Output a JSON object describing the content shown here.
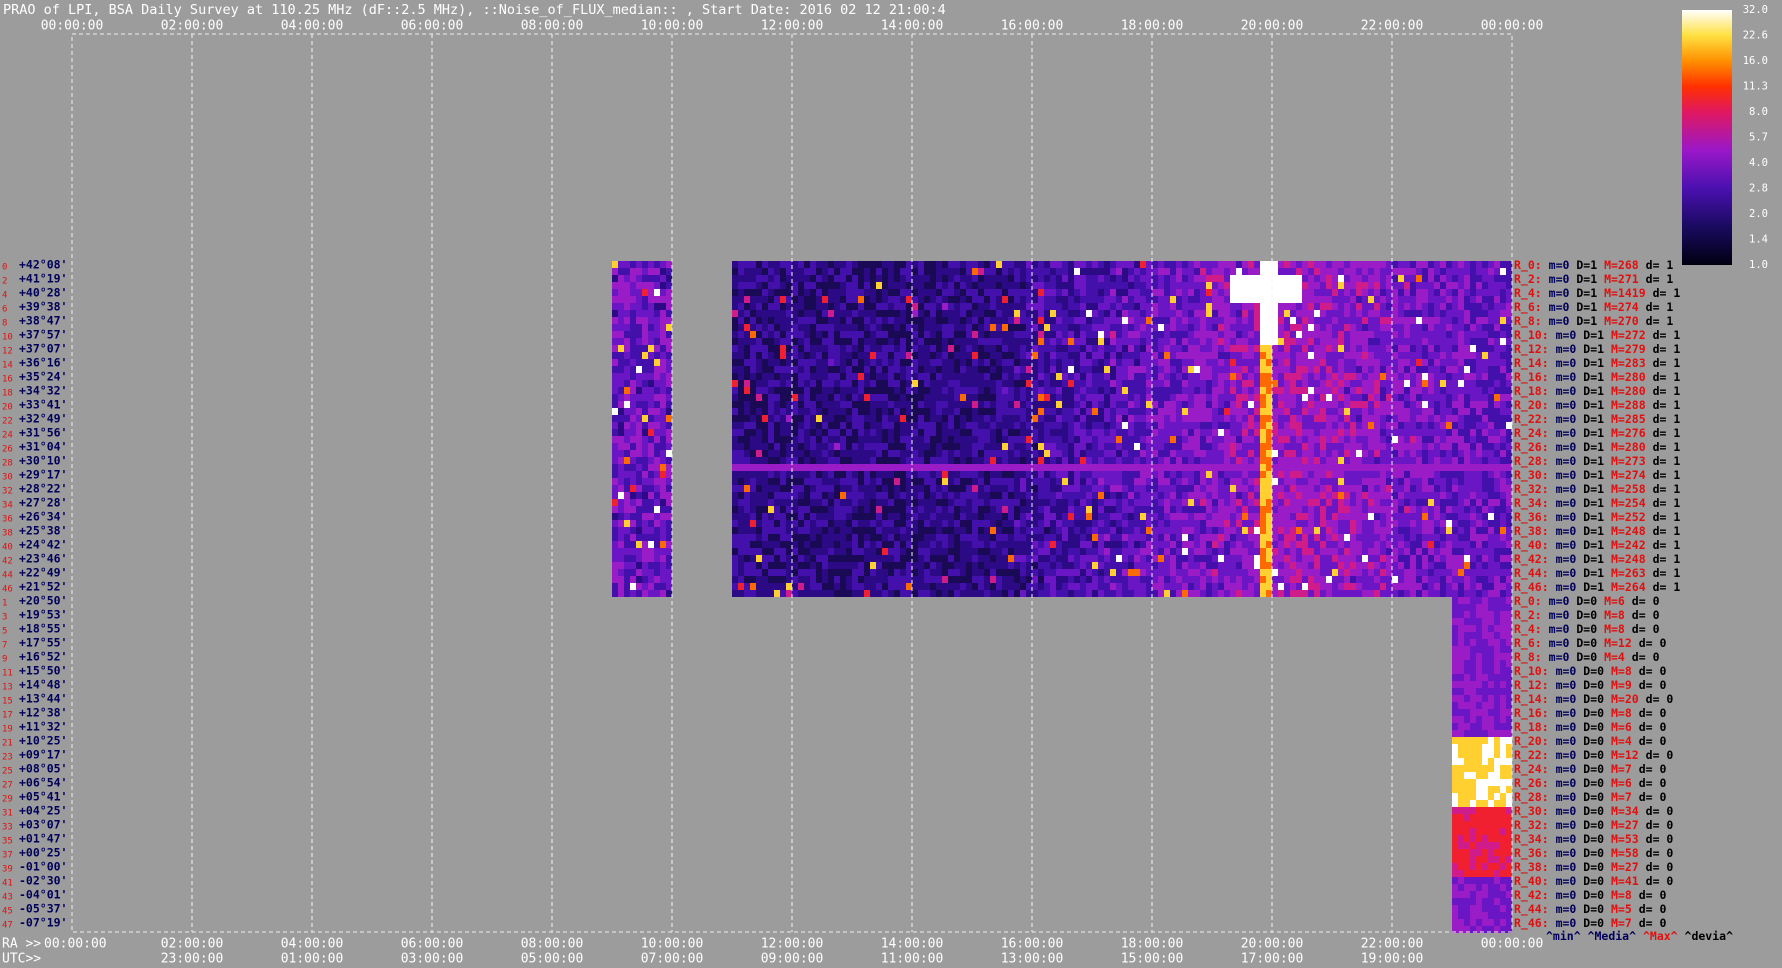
{
  "title": "PRAO of LPI, BSA Daily Survey at 110.25 MHz (dF::2.5 MHz), ::Noise_of_FLUX_median:: , Start Date: 2016 02 12 21:00:4",
  "top_axis": [
    "00:00:00",
    "02:00:00",
    "04:00:00",
    "06:00:00",
    "08:00:00",
    "10:00:00",
    "12:00:00",
    "14:00:00",
    "16:00:00",
    "18:00:00",
    "20:00:00",
    "22:00:00",
    "00:00:00"
  ],
  "bottom_axis": {
    "prefix": "RA >>",
    "labels": [
      "00:00:00",
      "02:00:00",
      "04:00:00",
      "06:00:00",
      "08:00:00",
      "10:00:00",
      "12:00:00",
      "14:00:00",
      "16:00:00",
      "18:00:00",
      "20:00:00",
      "22:00:00",
      "00:00:00"
    ]
  },
  "utc_axis": {
    "prefix": "UTC>>",
    "labels": [
      "23:00:00",
      "01:00:00",
      "03:00:00",
      "05:00:00",
      "07:00:00",
      "09:00:00",
      "11:00:00",
      "13:00:00",
      "15:00:00",
      "17:00:00",
      "19:00:00"
    ]
  },
  "colorbar": [
    "32.0",
    "22.6",
    "16.0",
    "11.3",
    "8.0",
    "5.7",
    "4.0",
    "2.8",
    "2.0",
    "1.4",
    "1.0"
  ],
  "rows": [
    {
      "index": "0",
      "dec": "+42°08'"
    },
    {
      "index": "2",
      "dec": "+41°19'"
    },
    {
      "index": "4",
      "dec": "+40°28'"
    },
    {
      "index": "6",
      "dec": "+39°38'"
    },
    {
      "index": "8",
      "dec": "+38°47'"
    },
    {
      "index": "10",
      "dec": "+37°57'"
    },
    {
      "index": "12",
      "dec": "+37°07'"
    },
    {
      "index": "14",
      "dec": "+36°16'"
    },
    {
      "index": "16",
      "dec": "+35°24'"
    },
    {
      "index": "18",
      "dec": "+34°32'"
    },
    {
      "index": "20",
      "dec": "+33°41'"
    },
    {
      "index": "22",
      "dec": "+32°49'"
    },
    {
      "index": "24",
      "dec": "+31°56'"
    },
    {
      "index": "26",
      "dec": "+31°04'"
    },
    {
      "index": "28",
      "dec": "+30°10'"
    },
    {
      "index": "30",
      "dec": "+29°17'"
    },
    {
      "index": "32",
      "dec": "+28°22'"
    },
    {
      "index": "34",
      "dec": "+27°28'"
    },
    {
      "index": "36",
      "dec": "+26°34'"
    },
    {
      "index": "38",
      "dec": "+25°38'"
    },
    {
      "index": "40",
      "dec": "+24°42'"
    },
    {
      "index": "42",
      "dec": "+23°46'"
    },
    {
      "index": "44",
      "dec": "+22°49'"
    },
    {
      "index": "46",
      "dec": "+21°52'"
    },
    {
      "index": "1",
      "dec": "+20°50'"
    },
    {
      "index": "3",
      "dec": "+19°53'"
    },
    {
      "index": "5",
      "dec": "+18°55'"
    },
    {
      "index": "7",
      "dec": "+17°55'"
    },
    {
      "index": "9",
      "dec": "+16°52'"
    },
    {
      "index": "11",
      "dec": "+15°50'"
    },
    {
      "index": "13",
      "dec": "+14°48'"
    },
    {
      "index": "15",
      "dec": "+13°44'"
    },
    {
      "index": "17",
      "dec": "+12°38'"
    },
    {
      "index": "19",
      "dec": "+11°32'"
    },
    {
      "index": "21",
      "dec": "+10°25'"
    },
    {
      "index": "23",
      "dec": "+09°17'"
    },
    {
      "index": "25",
      "dec": "+08°05'"
    },
    {
      "index": "27",
      "dec": "+06°54'"
    },
    {
      "index": "29",
      "dec": "+05°41'"
    },
    {
      "index": "31",
      "dec": "+04°25'"
    },
    {
      "index": "33",
      "dec": "+03°07'"
    },
    {
      "index": "35",
      "dec": "+01°47'"
    },
    {
      "index": "37",
      "dec": "+00°25'"
    },
    {
      "index": "39",
      "dec": "-01°00'"
    },
    {
      "index": "41",
      "dec": "-02°30'"
    },
    {
      "index": "43",
      "dec": "-04°01'"
    },
    {
      "index": "45",
      "dec": "-05°37'"
    },
    {
      "index": "47",
      "dec": "-07°19'"
    }
  ],
  "stats": [
    {
      "label": "R_0:",
      "m": "m=0",
      "D": "D=1",
      "M": "M=268",
      "d": "d= 1"
    },
    {
      "label": "R_2:",
      "m": "m=0",
      "D": "D=1",
      "M": "M=271",
      "d": "d= 1"
    },
    {
      "label": "R_4:",
      "m": "m=0",
      "D": "D=1",
      "M": "M=1419",
      "d": "d= 1"
    },
    {
      "label": "R_6:",
      "m": "m=0",
      "D": "D=1",
      "M": "M=274",
      "d": "d= 1"
    },
    {
      "label": "R_8:",
      "m": "m=0",
      "D": "D=1",
      "M": "M=270",
      "d": "d= 1"
    },
    {
      "label": "R_10:",
      "m": "m=0",
      "D": "D=1",
      "M": "M=272",
      "d": "d= 1"
    },
    {
      "label": "R_12:",
      "m": "m=0",
      "D": "D=1",
      "M": "M=279",
      "d": "d= 1"
    },
    {
      "label": "R_14:",
      "m": "m=0",
      "D": "D=1",
      "M": "M=283",
      "d": "d= 1"
    },
    {
      "label": "R_16:",
      "m": "m=0",
      "D": "D=1",
      "M": "M=280",
      "d": "d= 1"
    },
    {
      "label": "R_18:",
      "m": "m=0",
      "D": "D=1",
      "M": "M=280",
      "d": "d= 1"
    },
    {
      "label": "R_20:",
      "m": "m=0",
      "D": "D=1",
      "M": "M=288",
      "d": "d= 1"
    },
    {
      "label": "R_22:",
      "m": "m=0",
      "D": "D=1",
      "M": "M=285",
      "d": "d= 1"
    },
    {
      "label": "R_24:",
      "m": "m=0",
      "D": "D=1",
      "M": "M=276",
      "d": "d= 1"
    },
    {
      "label": "R_26:",
      "m": "m=0",
      "D": "D=1",
      "M": "M=280",
      "d": "d= 1"
    },
    {
      "label": "R_28:",
      "m": "m=0",
      "D": "D=1",
      "M": "M=273",
      "d": "d= 1"
    },
    {
      "label": "R_30:",
      "m": "m=0",
      "D": "D=1",
      "M": "M=274",
      "d": "d= 1"
    },
    {
      "label": "R_32:",
      "m": "m=0",
      "D": "D=1",
      "M": "M=258",
      "d": "d= 1"
    },
    {
      "label": "R_34:",
      "m": "m=0",
      "D": "D=1",
      "M": "M=254",
      "d": "d= 1"
    },
    {
      "label": "R_36:",
      "m": "m=0",
      "D": "D=1",
      "M": "M=252",
      "d": "d= 1"
    },
    {
      "label": "R_38:",
      "m": "m=0",
      "D": "D=1",
      "M": "M=248",
      "d": "d= 1"
    },
    {
      "label": "R_40:",
      "m": "m=0",
      "D": "D=1",
      "M": "M=242",
      "d": "d= 1"
    },
    {
      "label": "R_42:",
      "m": "m=0",
      "D": "D=1",
      "M": "M=248",
      "d": "d= 1"
    },
    {
      "label": "R_44:",
      "m": "m=0",
      "D": "D=1",
      "M": "M=263",
      "d": "d= 1"
    },
    {
      "label": "R_46:",
      "m": "m=0",
      "D": "D=1",
      "M": "M=264",
      "d": "d= 1"
    },
    {
      "label": "R_0:",
      "m": "m=0",
      "D": "D=0",
      "M": "M=6",
      "d": "d= 0"
    },
    {
      "label": "R_2:",
      "m": "m=0",
      "D": "D=0",
      "M": "M=8",
      "d": "d= 0"
    },
    {
      "label": "R_4:",
      "m": "m=0",
      "D": "D=0",
      "M": "M=8",
      "d": "d= 0"
    },
    {
      "label": "R_6:",
      "m": "m=0",
      "D": "D=0",
      "M": "M=12",
      "d": "d= 0"
    },
    {
      "label": "R_8:",
      "m": "m=0",
      "D": "D=0",
      "M": "M=4",
      "d": "d= 0"
    },
    {
      "label": "R_10:",
      "m": "m=0",
      "D": "D=0",
      "M": "M=8",
      "d": "d= 0"
    },
    {
      "label": "R_12:",
      "m": "m=0",
      "D": "D=0",
      "M": "M=9",
      "d": "d= 0"
    },
    {
      "label": "R_14:",
      "m": "m=0",
      "D": "D=0",
      "M": "M=20",
      "d": "d= 0"
    },
    {
      "label": "R_16:",
      "m": "m=0",
      "D": "D=0",
      "M": "M=8",
      "d": "d= 0"
    },
    {
      "label": "R_18:",
      "m": "m=0",
      "D": "D=0",
      "M": "M=6",
      "d": "d= 0"
    },
    {
      "label": "R_20:",
      "m": "m=0",
      "D": "D=0",
      "M": "M=4",
      "d": "d= 0"
    },
    {
      "label": "R_22:",
      "m": "m=0",
      "D": "D=0",
      "M": "M=12",
      "d": "d= 0"
    },
    {
      "label": "R_24:",
      "m": "m=0",
      "D": "D=0",
      "M": "M=7",
      "d": "d= 0"
    },
    {
      "label": "R_26:",
      "m": "m=0",
      "D": "D=0",
      "M": "M=6",
      "d": "d= 0"
    },
    {
      "label": "R_28:",
      "m": "m=0",
      "D": "D=0",
      "M": "M=7",
      "d": "d= 0"
    },
    {
      "label": "R_30:",
      "m": "m=0",
      "D": "D=0",
      "M": "M=34",
      "d": "d= 0"
    },
    {
      "label": "R_32:",
      "m": "m=0",
      "D": "D=0",
      "M": "M=27",
      "d": "d= 0"
    },
    {
      "label": "R_34:",
      "m": "m=0",
      "D": "D=0",
      "M": "M=53",
      "d": "d= 0"
    },
    {
      "label": "R_36:",
      "m": "m=0",
      "D": "D=0",
      "M": "M=58",
      "d": "d= 0"
    },
    {
      "label": "R_38:",
      "m": "m=0",
      "D": "D=0",
      "M": "M=27",
      "d": "d= 0"
    },
    {
      "label": "R_40:",
      "m": "m=0",
      "D": "D=0",
      "M": "M=41",
      "d": "d= 0"
    },
    {
      "label": "R_42:",
      "m": "m=0",
      "D": "D=0",
      "M": "M=8",
      "d": "d= 0"
    },
    {
      "label": "R_44:",
      "m": "m=0",
      "D": "D=0",
      "M": "M=5",
      "d": "d= 0"
    },
    {
      "label": "R_46:",
      "m": "m=0",
      "D": "D=0",
      "M": "M=7",
      "d": "d= 0"
    }
  ],
  "legend": [
    "^min^",
    "^Media^",
    "^Max^",
    "^devia^"
  ]
}
